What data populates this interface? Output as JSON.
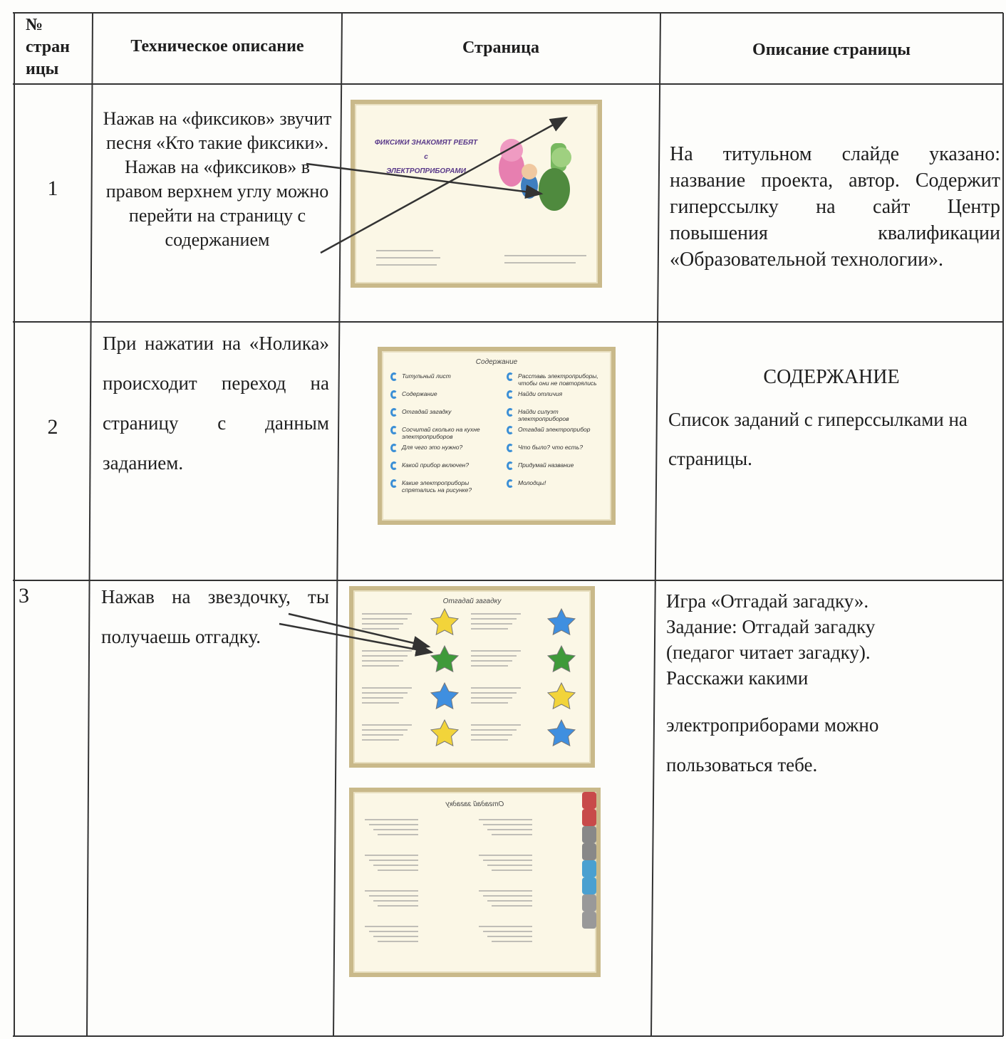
{
  "table": {
    "header": {
      "number": [
        "№",
        "стран",
        "ицы"
      ],
      "technical": "Техническое описание",
      "page": "Страница",
      "description": "Описание страницы"
    },
    "rows": [
      {
        "number": "1",
        "technical": "Нажав на «фиксиков» звучит песня «Кто такие фиксики». Нажав на «фиксиков» в правом верхнем углу можно перейти на страницу с содержанием",
        "slide": {
          "title": [
            "ФИКСИКИ ЗНАКОМЯТ РЕБЯТ",
            "с",
            "ЭЛЕКТРОПРИБОРАМИ"
          ]
        },
        "description": "На титульном слайде указано: название проекта, автор. Содержит гиперссылку на сайт Центр повышения квалификации «Образовательной технологии»."
      },
      {
        "number": "2",
        "technical": "При нажатии на «Нолика» происходит переход на страницу с данным заданием.",
        "slide": {
          "title": "Содержание",
          "left": [
            "Титульный лист",
            "Содержание",
            "Отгадай загадку",
            "Сосчитай сколько на кухне электроприборов",
            "Для чего это нужно?",
            "Какой прибор включен?",
            "Какие электроприборы спрятались на рисунке?"
          ],
          "right": [
            "Расставь электроприборы, чтобы они не повторялись",
            "Найди отличия",
            "Найди силуэт электроприборов",
            "Отгадай электроприбор",
            "Что было? что есть?",
            "Придумай название",
            "Молодцы!"
          ]
        },
        "description_heading": "СОДЕРЖАНИЕ",
        "description": "Список заданий с гиперссылками на страницы."
      },
      {
        "number": "3",
        "technical": "Нажав на звездочку, ты получаешь отгадку.",
        "slides": [
          {
            "title": "Отгадай загадку"
          },
          {
            "title": "Отгадай загадку"
          }
        ],
        "description": [
          "Игра «Отгадай загадку».",
          "Задание: Отгадай загадку",
          "(педагог читает загадку).",
          "Расскажи какими",
          "электроприборами можно",
          "пользоваться тебе."
        ]
      }
    ]
  }
}
